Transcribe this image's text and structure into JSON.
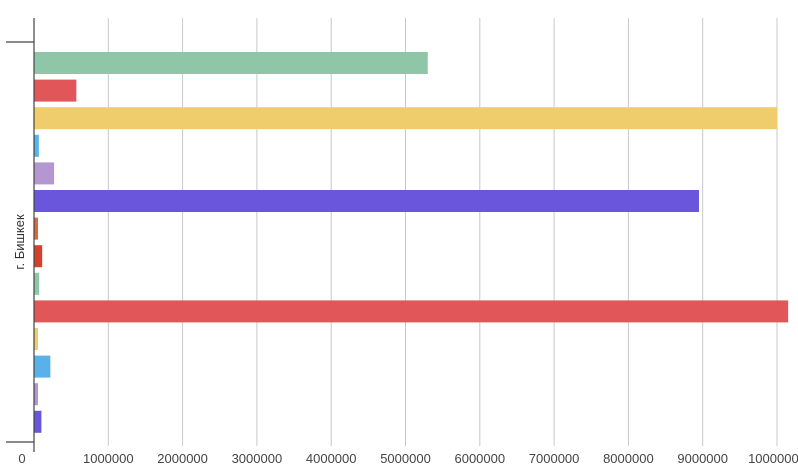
{
  "chart_data": {
    "type": "bar",
    "orientation": "horizontal",
    "category_label": "г. Бишкек",
    "x_ticks": [
      "0",
      "1000000",
      "2000000",
      "3000000",
      "4000000",
      "5000000",
      "6000000",
      "7000000",
      "8000000",
      "9000000",
      "10000000"
    ],
    "xlim": [
      0,
      10100000
    ],
    "grid": true,
    "legend": "none",
    "series": [
      {
        "value": 5300000,
        "color": "#8fc6a8"
      },
      {
        "value": 570000,
        "color": "#e15759"
      },
      {
        "value": 10000000,
        "color": "#f0cd6c"
      },
      {
        "value": 65000,
        "color": "#58b1e8"
      },
      {
        "value": 270000,
        "color": "#b497d1"
      },
      {
        "value": 8950000,
        "color": "#6a56dc"
      },
      {
        "value": 50000,
        "color": "#e0673a"
      },
      {
        "value": 110000,
        "color": "#d5402b"
      },
      {
        "value": 70000,
        "color": "#8fc6a8"
      },
      {
        "value": 10150000,
        "color": "#e15759"
      },
      {
        "value": 50000,
        "color": "#f0cd6c"
      },
      {
        "value": 220000,
        "color": "#58b1e8"
      },
      {
        "value": 50000,
        "color": "#b497d1"
      },
      {
        "value": 100000,
        "color": "#6a56dc"
      }
    ]
  }
}
